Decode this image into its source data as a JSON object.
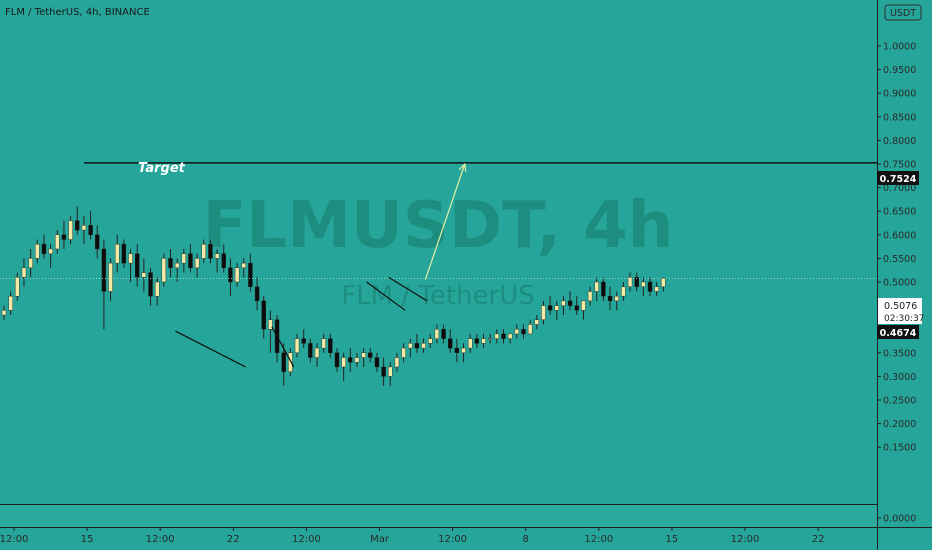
{
  "symbol_line": "FLM / TetherUS, 4h, BINANCE",
  "watermark": {
    "main": "FLMUSDT, 4h",
    "sub": "FLM / TetherUS"
  },
  "currency_badge": "USDT",
  "y_ticks": [
    "1.0000",
    "0.9500",
    "0.9000",
    "0.8500",
    "0.8000",
    "0.7500",
    "0.7000",
    "0.6500",
    "0.6000",
    "0.5500",
    "0.5000",
    "0.4500",
    "0.4000",
    "0.3500",
    "0.3000",
    "0.2500",
    "0.2000",
    "0.1500",
    "0.0000"
  ],
  "x_ticks": [
    "12:00",
    "15",
    "12:00",
    "22",
    "12:00",
    "Mar",
    "12:00",
    "8",
    "12:00",
    "15",
    "12:00",
    "22"
  ],
  "target": {
    "label": "Target",
    "value": "0.7524"
  },
  "last_price": {
    "value": "0.5076",
    "countdown": "02:30:37"
  },
  "second_price": {
    "value": "0.4674"
  },
  "colors": {
    "background": "#26a69a",
    "lower_pane": "#2ba99c",
    "up_candle": "#f3eaa5",
    "down_candle": "#0c0c0c",
    "line": "#111111",
    "arrow": "#e2eea2",
    "watermark": "#1d8d80",
    "text": "#1a1a1a",
    "axis_text": "#2a2a2a"
  },
  "chart_data": {
    "type": "candlestick",
    "title": "FLM / TetherUS, 4h, BINANCE",
    "ylim": [
      0.0,
      1.0
    ],
    "candles": [
      [
        0.43,
        0.45,
        0.42,
        0.44
      ],
      [
        0.44,
        0.48,
        0.43,
        0.47
      ],
      [
        0.47,
        0.52,
        0.46,
        0.51
      ],
      [
        0.51,
        0.55,
        0.49,
        0.53
      ],
      [
        0.53,
        0.57,
        0.51,
        0.55
      ],
      [
        0.55,
        0.59,
        0.54,
        0.58
      ],
      [
        0.58,
        0.6,
        0.55,
        0.56
      ],
      [
        0.56,
        0.58,
        0.53,
        0.57
      ],
      [
        0.57,
        0.61,
        0.56,
        0.6
      ],
      [
        0.6,
        0.63,
        0.57,
        0.59
      ],
      [
        0.59,
        0.64,
        0.58,
        0.63
      ],
      [
        0.63,
        0.66,
        0.6,
        0.61
      ],
      [
        0.61,
        0.64,
        0.58,
        0.62
      ],
      [
        0.62,
        0.65,
        0.59,
        0.6
      ],
      [
        0.6,
        0.62,
        0.55,
        0.57
      ],
      [
        0.57,
        0.59,
        0.4,
        0.48
      ],
      [
        0.48,
        0.55,
        0.46,
        0.54
      ],
      [
        0.54,
        0.6,
        0.52,
        0.58
      ],
      [
        0.58,
        0.59,
        0.53,
        0.54
      ],
      [
        0.54,
        0.57,
        0.5,
        0.56
      ],
      [
        0.56,
        0.58,
        0.49,
        0.51
      ],
      [
        0.51,
        0.55,
        0.48,
        0.52
      ],
      [
        0.52,
        0.53,
        0.45,
        0.47
      ],
      [
        0.47,
        0.51,
        0.45,
        0.5
      ],
      [
        0.5,
        0.56,
        0.49,
        0.55
      ],
      [
        0.55,
        0.57,
        0.51,
        0.53
      ],
      [
        0.53,
        0.55,
        0.5,
        0.54
      ],
      [
        0.54,
        0.57,
        0.52,
        0.56
      ],
      [
        0.56,
        0.58,
        0.52,
        0.53
      ],
      [
        0.53,
        0.56,
        0.51,
        0.55
      ],
      [
        0.55,
        0.59,
        0.54,
        0.58
      ],
      [
        0.58,
        0.59,
        0.54,
        0.55
      ],
      [
        0.55,
        0.57,
        0.52,
        0.56
      ],
      [
        0.56,
        0.58,
        0.52,
        0.53
      ],
      [
        0.53,
        0.55,
        0.47,
        0.5
      ],
      [
        0.5,
        0.54,
        0.49,
        0.53
      ],
      [
        0.53,
        0.55,
        0.51,
        0.54
      ],
      [
        0.54,
        0.56,
        0.48,
        0.49
      ],
      [
        0.49,
        0.51,
        0.44,
        0.46
      ],
      [
        0.46,
        0.47,
        0.38,
        0.4
      ],
      [
        0.4,
        0.44,
        0.35,
        0.42
      ],
      [
        0.42,
        0.43,
        0.33,
        0.35
      ],
      [
        0.35,
        0.37,
        0.28,
        0.31
      ],
      [
        0.31,
        0.36,
        0.3,
        0.35
      ],
      [
        0.35,
        0.39,
        0.34,
        0.38
      ],
      [
        0.38,
        0.4,
        0.36,
        0.37
      ],
      [
        0.37,
        0.38,
        0.33,
        0.34
      ],
      [
        0.34,
        0.37,
        0.32,
        0.36
      ],
      [
        0.36,
        0.39,
        0.35,
        0.38
      ],
      [
        0.38,
        0.39,
        0.34,
        0.35
      ],
      [
        0.35,
        0.36,
        0.31,
        0.32
      ],
      [
        0.32,
        0.35,
        0.29,
        0.34
      ],
      [
        0.34,
        0.36,
        0.31,
        0.33
      ],
      [
        0.33,
        0.35,
        0.32,
        0.34
      ],
      [
        0.34,
        0.36,
        0.32,
        0.35
      ],
      [
        0.35,
        0.36,
        0.33,
        0.34
      ],
      [
        0.34,
        0.35,
        0.31,
        0.32
      ],
      [
        0.32,
        0.34,
        0.28,
        0.3
      ],
      [
        0.3,
        0.33,
        0.28,
        0.32
      ],
      [
        0.32,
        0.35,
        0.31,
        0.34
      ],
      [
        0.34,
        0.37,
        0.33,
        0.36
      ],
      [
        0.36,
        0.38,
        0.34,
        0.37
      ],
      [
        0.37,
        0.39,
        0.35,
        0.36
      ],
      [
        0.36,
        0.38,
        0.35,
        0.37
      ],
      [
        0.37,
        0.39,
        0.36,
        0.38
      ],
      [
        0.38,
        0.41,
        0.37,
        0.4
      ],
      [
        0.4,
        0.41,
        0.37,
        0.38
      ],
      [
        0.38,
        0.4,
        0.35,
        0.36
      ],
      [
        0.36,
        0.38,
        0.33,
        0.35
      ],
      [
        0.35,
        0.37,
        0.33,
        0.36
      ],
      [
        0.36,
        0.39,
        0.35,
        0.38
      ],
      [
        0.38,
        0.39,
        0.36,
        0.37
      ],
      [
        0.37,
        0.39,
        0.36,
        0.38
      ],
      [
        0.38,
        0.39,
        0.37,
        0.38
      ],
      [
        0.38,
        0.4,
        0.37,
        0.39
      ],
      [
        0.39,
        0.4,
        0.37,
        0.38
      ],
      [
        0.38,
        0.39,
        0.37,
        0.39
      ],
      [
        0.39,
        0.41,
        0.38,
        0.4
      ],
      [
        0.4,
        0.41,
        0.38,
        0.39
      ],
      [
        0.39,
        0.42,
        0.39,
        0.41
      ],
      [
        0.41,
        0.43,
        0.4,
        0.42
      ],
      [
        0.42,
        0.46,
        0.41,
        0.45
      ],
      [
        0.45,
        0.47,
        0.43,
        0.44
      ],
      [
        0.44,
        0.46,
        0.42,
        0.45
      ],
      [
        0.45,
        0.47,
        0.43,
        0.46
      ],
      [
        0.46,
        0.48,
        0.44,
        0.45
      ],
      [
        0.45,
        0.47,
        0.43,
        0.44
      ],
      [
        0.44,
        0.46,
        0.42,
        0.46
      ],
      [
        0.46,
        0.49,
        0.45,
        0.48
      ],
      [
        0.48,
        0.51,
        0.46,
        0.5
      ],
      [
        0.5,
        0.51,
        0.46,
        0.47
      ],
      [
        0.47,
        0.49,
        0.44,
        0.46
      ],
      [
        0.46,
        0.48,
        0.44,
        0.47
      ],
      [
        0.47,
        0.5,
        0.46,
        0.49
      ],
      [
        0.49,
        0.52,
        0.48,
        0.51
      ],
      [
        0.51,
        0.52,
        0.48,
        0.49
      ],
      [
        0.49,
        0.51,
        0.47,
        0.5
      ],
      [
        0.5,
        0.51,
        0.47,
        0.48
      ],
      [
        0.48,
        0.5,
        0.47,
        0.49
      ],
      [
        0.49,
        0.51,
        0.48,
        0.5076
      ]
    ],
    "annotations": {
      "target_level": 0.7524,
      "last_price": 0.5076,
      "second_price": 0.4674,
      "trendlines": [
        [
          [
            0.2,
            0.396
          ],
          [
            0.28,
            0.32
          ]
        ],
        [
          [
            0.31,
            0.405
          ],
          [
            0.335,
            0.32
          ]
        ],
        [
          [
            0.418,
            0.5
          ],
          [
            0.462,
            0.44
          ]
        ],
        [
          [
            0.443,
            0.51
          ],
          [
            0.487,
            0.46
          ]
        ]
      ],
      "projection_arrow": [
        [
          0.485,
          0.505
        ],
        [
          0.53,
          0.75
        ]
      ]
    }
  }
}
